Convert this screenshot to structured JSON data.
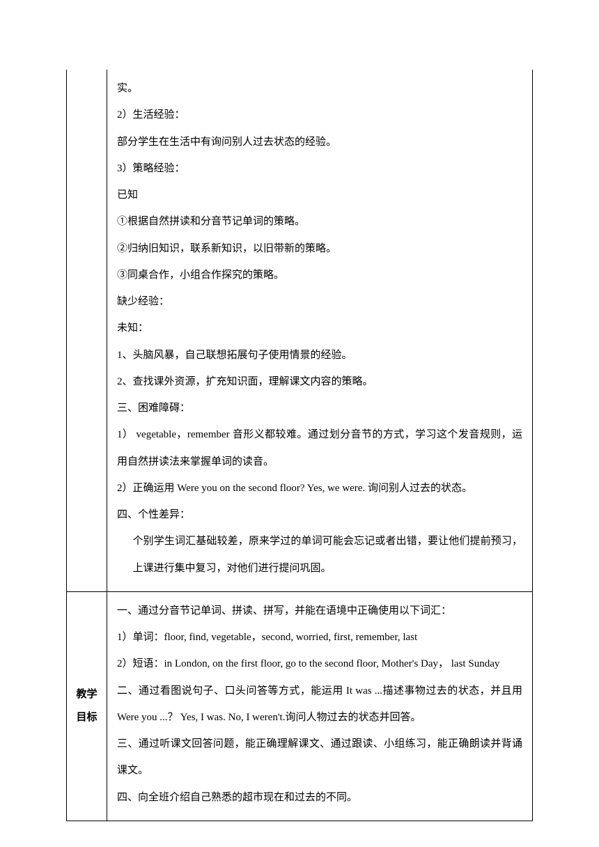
{
  "section1": {
    "lines": [
      "实。",
      "2）生活经验：",
      "部分学生在生活中有询问别人过去状态的经验。",
      "3）策略经验：",
      "已知",
      "①根据自然拼读和分音节记单词的策略。",
      "②归纳旧知识，联系新知识，以旧带新的策略。",
      "③同桌合作，小组合作探究的策略。",
      "缺少经验：",
      "未知：",
      "1、头脑风暴，自己联想拓展句子使用情景的经验。",
      "2、查找课外资源，扩充知识面，理解课文内容的策略。",
      "三、困难障碍：",
      "1）  vegetable，remember 音形义都较难。通过划分音节的方式，学习这个发音规则，运用自然拼读法来掌握单词的读音。",
      "2）正确运用 Were you on the second floor? Yes, we were. 询问别人过去的状态。",
      "四、个性差异："
    ],
    "indented_lines": [
      "个别学生词汇基础较差，原来学过的单词可能会忘记或者出错，要让他们提前预习，上课进行集中复习，对他们进行提问巩固。"
    ]
  },
  "section2": {
    "label_line1": "教学",
    "label_line2": "目标",
    "lines": [
      "一、通过分音节记单词、拼读、拼写，并能在语境中正确使用以下词汇：",
      "  1）单词：floor, find, vegetable，second, worried, first, remember, last",
      "  2）短语：in London, on the first floor, go to the second floor, Mother's Day， last Sunday",
      "二、通过看图说句子、口头问答等方式，能运用 It was ...描述事物过去的状态，并且用 Were you ...？  Yes, I was. No, I weren't.询问人物过去的状态并回答。",
      "三、通过听课文回答问题，能正确理解课文、通过跟读、小组练习，能正确朗读并背诵课文。",
      "四、向全班介绍自己熟悉的超市现在和过去的不同。"
    ]
  },
  "styles": {
    "text_color": "#000000",
    "background_color": "#ffffff",
    "border_color": "#000000",
    "font_size": 15,
    "line_height": 2.55
  }
}
